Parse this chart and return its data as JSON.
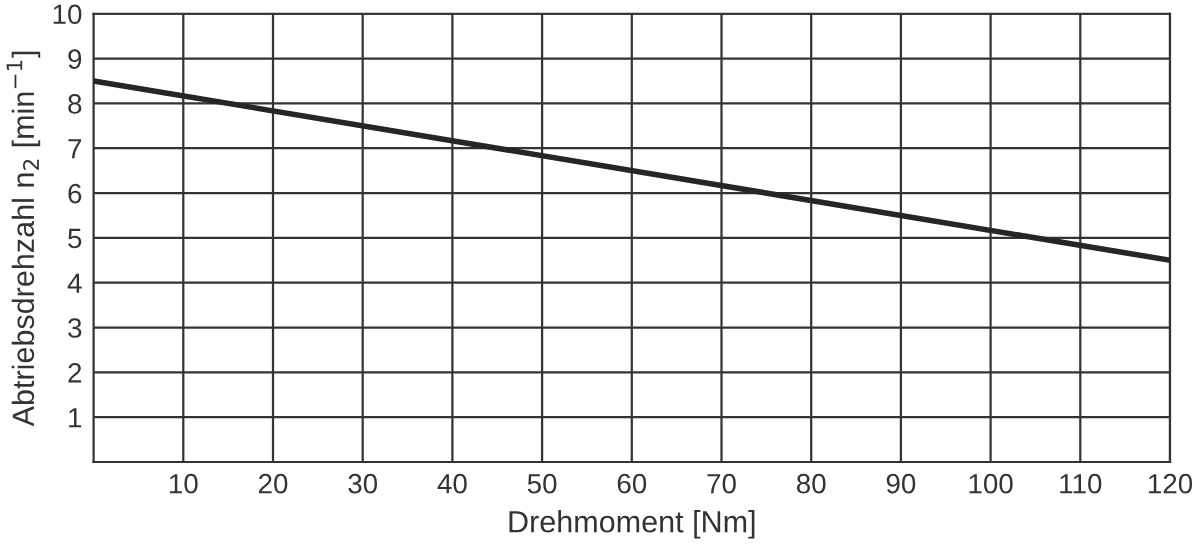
{
  "chart_data": {
    "type": "line",
    "xlabel": "Drehmoment [Nm]",
    "ylabel": "Abtriebsdrehzahl n$_{2}$ [min$^{−1}$]",
    "x": [
      0,
      120
    ],
    "series": [
      {
        "color": "#262626",
        "values": [
          8.5,
          4.5
        ]
      }
    ],
    "xlim": [
      0,
      120
    ],
    "xticks": [
      10,
      20,
      30,
      40,
      50,
      60,
      70,
      80,
      90,
      100,
      110,
      120
    ],
    "ylim": [
      0,
      10
    ],
    "yticks": [
      1,
      2,
      3,
      4,
      5,
      6,
      7,
      8,
      9,
      10
    ],
    "grid": true,
    "marker": "none",
    "line_style": "solid"
  }
}
